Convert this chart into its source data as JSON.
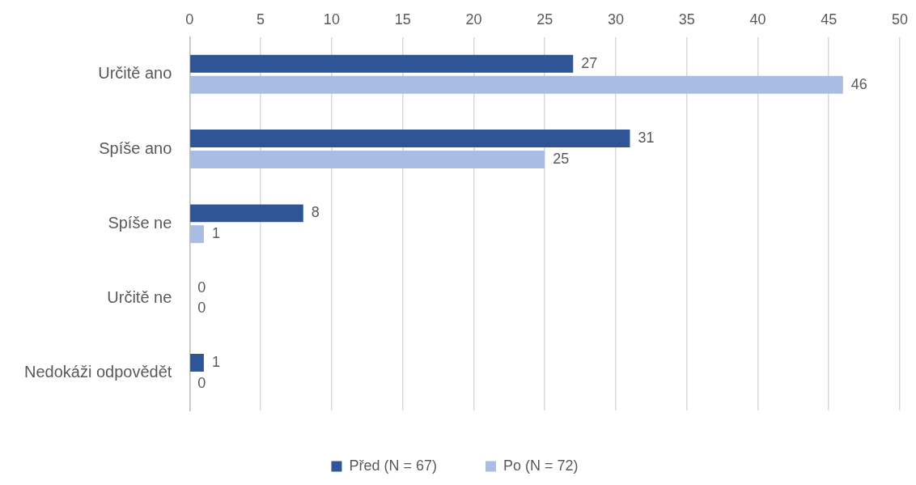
{
  "chart_data": {
    "type": "bar",
    "orientation": "horizontal",
    "categories": [
      "Určitě ano",
      "Spíše ano",
      "Spíše ne",
      "Určitě ne",
      "Nedokáži odpovědět"
    ],
    "series": [
      {
        "name": "Před (N = 67)",
        "color": "#2f5597",
        "values": [
          27,
          31,
          8,
          0,
          1
        ]
      },
      {
        "name": "Po (N = 72)",
        "color": "#a9bde3",
        "values": [
          46,
          25,
          1,
          0,
          0
        ]
      }
    ],
    "xlim": [
      0,
      50
    ],
    "xticks": [
      0,
      5,
      10,
      15,
      20,
      25,
      30,
      35,
      40,
      45,
      50
    ],
    "grid": "x",
    "legend": "bottom",
    "data_labels": true
  }
}
